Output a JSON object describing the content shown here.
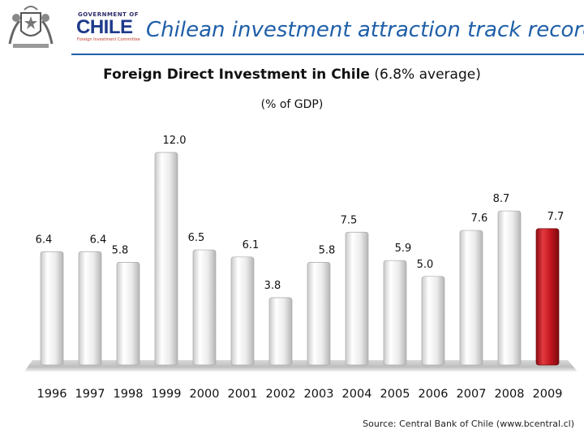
{
  "header": {
    "logo_gov": "GOVERNMENT OF",
    "logo_chile": "CHILE",
    "logo_sub": "Foreign Investment Committee",
    "title": "Chilean investment attraction track record"
  },
  "colors": {
    "title_blue": "#1f5fa8",
    "bar_gray": "#e2e2e2",
    "bar_highlight": "#c0141c"
  },
  "chart_data": {
    "type": "bar",
    "title_bold": "Foreign Direct Investment in Chile",
    "title_rest": "(6.8% average)",
    "subtitle": "(% of GDP)",
    "xlabel": "",
    "ylabel": "",
    "categories": [
      "1996",
      "1997",
      "1998",
      "1999",
      "2000",
      "2001",
      "2002",
      "2003",
      "2004",
      "2005",
      "2006",
      "2007",
      "2008",
      "2009"
    ],
    "values": [
      6.4,
      6.4,
      5.8,
      12.0,
      6.5,
      6.1,
      3.8,
      5.8,
      7.5,
      5.9,
      5.0,
      7.6,
      8.7,
      7.7
    ],
    "value_labels": [
      "6.4",
      "6.4",
      "5.8",
      "12.0",
      "6.5",
      "6.1",
      "3.8",
      "5.8",
      "7.5",
      "5.9",
      "5.0",
      "7.6",
      "8.7",
      "7.7"
    ],
    "highlight_index": 13,
    "ylim": [
      0,
      12
    ],
    "grid": false,
    "legend": "none"
  },
  "footer": {
    "source": "Source: Central Bank of Chile (www.bcentral.cl)"
  }
}
